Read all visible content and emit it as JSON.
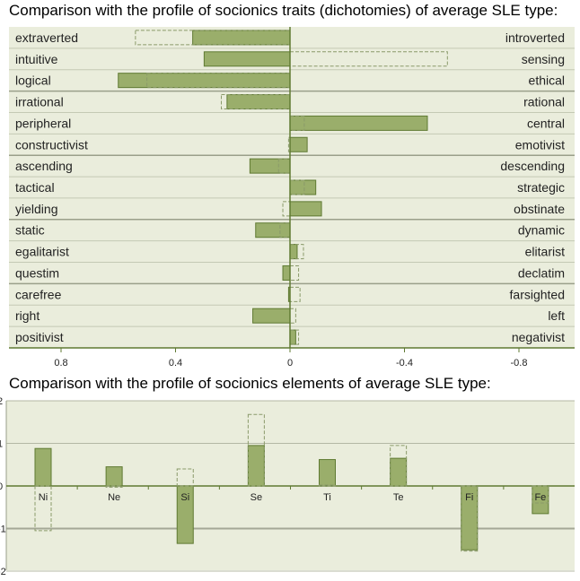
{
  "chart_data": [
    {
      "type": "bar",
      "orientation": "horizontal",
      "title": "Comparison with the profile of socionics traits (dichotomies) of average SLE type:",
      "categories_left": [
        "extraverted",
        "intuitive",
        "logical",
        "irrational",
        "peripheral",
        "constructivist",
        "ascending",
        "tactical",
        "yielding",
        "static",
        "egalitarist",
        "questim",
        "carefree",
        "right",
        "positivist"
      ],
      "categories_right": [
        "introverted",
        "sensing",
        "ethical",
        "rational",
        "central",
        "emotivist",
        "descending",
        "strategic",
        "obstinate",
        "dynamic",
        "elitarist",
        "declatim",
        "farsighted",
        "left",
        "negativist"
      ],
      "series": [
        {
          "name": "profile",
          "style": "filled",
          "values": [
            0.34,
            0.3,
            0.6,
            0.22,
            -0.48,
            -0.06,
            0.14,
            -0.09,
            -0.11,
            0.12,
            -0.025,
            0.025,
            0.005,
            0.13,
            -0.02
          ]
        },
        {
          "name": "average SLE",
          "style": "dashed",
          "values": [
            0.54,
            -0.55,
            0.5,
            0.24,
            -0.05,
            0.005,
            0.04,
            -0.05,
            0.025,
            0.035,
            -0.047,
            -0.03,
            -0.035,
            -0.02,
            -0.03
          ]
        }
      ],
      "xticks": [
        "0.8",
        "0.4",
        "0",
        "-0.4",
        "-0.8"
      ],
      "xtick_values": [
        0.8,
        0.4,
        0,
        -0.4,
        -0.8
      ],
      "xlim": [
        1.0,
        -1.0
      ]
    },
    {
      "type": "bar",
      "title": "Comparison with the profile of socionics elements of average SLE type:",
      "categories": [
        "Ni",
        "Ne",
        "Si",
        "Se",
        "Ti",
        "Te",
        "Fi",
        "Fe"
      ],
      "series": [
        {
          "name": "profile",
          "style": "filled",
          "values": [
            0.88,
            0.45,
            -1.35,
            0.95,
            0.62,
            0.65,
            -1.5,
            -0.65
          ]
        },
        {
          "name": "average SLE",
          "style": "dashed",
          "values": [
            -1.05,
            -0.03,
            0.4,
            1.68,
            0.02,
            0.95,
            -1.53,
            -0.4
          ]
        }
      ],
      "yticks": [
        "2",
        "1",
        "0",
        "-1",
        "-2"
      ],
      "ytick_values": [
        2,
        1,
        0,
        -1,
        -2
      ],
      "ylim": [
        -2,
        2
      ]
    }
  ],
  "colors": {
    "bar": "#9aae6b",
    "bar_edge": "#5f7a32",
    "bg": "#eaeddc",
    "axis": "#5f7a32",
    "dash": "#8a9a6a"
  }
}
